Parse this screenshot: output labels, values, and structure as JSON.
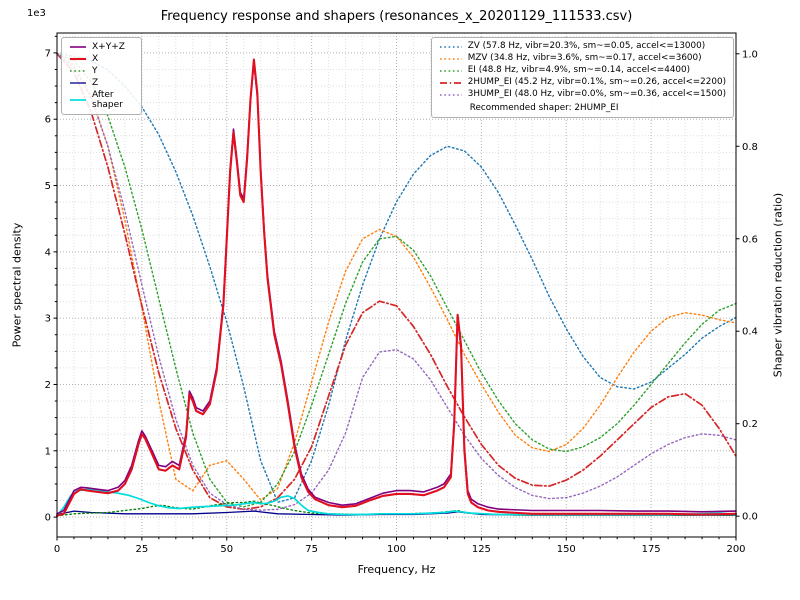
{
  "figure": {
    "title": "Frequency response and shapers (resonances_x_20201129_111533.csv)",
    "xlabel": "Frequency, Hz",
    "ylabel_left": "Power spectral density",
    "ylabel_right": "Shaper vibration reduction (ratio)",
    "offset_text": "1e3"
  },
  "chart_data": {
    "type": "line",
    "title": "Frequency response and shapers (resonances_x_20201129_111533.csv)",
    "x": {
      "label": "Frequency, Hz",
      "range": [
        0,
        200
      ],
      "ticks": [
        0,
        25,
        50,
        75,
        100,
        125,
        150,
        175,
        200
      ]
    },
    "y_left": {
      "label": "Power spectral density",
      "scale_note": "1e3",
      "ticks": [
        0,
        1,
        2,
        3,
        4,
        5,
        6,
        7
      ],
      "units": "PSD values below are in multiples of 1e3"
    },
    "y_right": {
      "label": "Shaper vibration reduction (ratio)",
      "range": [
        0,
        1
      ],
      "tick_labels": [
        "0.0",
        "0.2",
        "0.4",
        "0.6",
        "0.8",
        "1.0"
      ]
    },
    "grid": {
      "major": true,
      "minor": true,
      "legend_left_position": "upper left",
      "legend_right_position": "upper right"
    },
    "legend_note": "Recommended shaper: 2HUMP_EI",
    "psd_series": [
      {
        "name": "x-plus-y-plus-z",
        "label": "X+Y+Z",
        "color": "#800080",
        "style": "solid",
        "width": 1.6,
        "axis": "left",
        "x": [
          0,
          2,
          4,
          5,
          7,
          9,
          12,
          15,
          18,
          20,
          22,
          24,
          25,
          26,
          28,
          30,
          32,
          34,
          36,
          38,
          39,
          40,
          41,
          43,
          45,
          47,
          49,
          50,
          51,
          52,
          53,
          54,
          55,
          56,
          57,
          58,
          59,
          60,
          61,
          62,
          64,
          66,
          68,
          70,
          72,
          74,
          76,
          80,
          84,
          88,
          92,
          96,
          100,
          104,
          108,
          112,
          114,
          116,
          117,
          118,
          119,
          120,
          121,
          122,
          124,
          127,
          130,
          140,
          150,
          160,
          170,
          180,
          190,
          200
        ],
        "y": [
          0.05,
          0.1,
          0.3,
          0.4,
          0.45,
          0.44,
          0.42,
          0.4,
          0.45,
          0.55,
          0.78,
          1.15,
          1.3,
          1.22,
          1.0,
          0.78,
          0.76,
          0.84,
          0.78,
          1.25,
          1.9,
          1.8,
          1.65,
          1.6,
          1.75,
          2.25,
          3.25,
          4.25,
          5.25,
          5.85,
          5.4,
          4.9,
          4.8,
          5.45,
          6.3,
          6.85,
          6.35,
          5.25,
          4.35,
          3.65,
          2.8,
          2.35,
          1.75,
          1.1,
          0.65,
          0.42,
          0.3,
          0.22,
          0.18,
          0.2,
          0.28,
          0.36,
          0.4,
          0.4,
          0.38,
          0.45,
          0.5,
          0.65,
          1.45,
          3.0,
          2.55,
          1.05,
          0.4,
          0.27,
          0.2,
          0.15,
          0.12,
          0.1,
          0.1,
          0.1,
          0.09,
          0.09,
          0.08,
          0.09
        ]
      },
      {
        "name": "x",
        "label": "X",
        "color": "#e01020",
        "style": "solid",
        "width": 2.1,
        "axis": "left",
        "x": [
          0,
          2,
          4,
          5,
          7,
          9,
          12,
          15,
          18,
          20,
          22,
          24,
          25,
          26,
          28,
          30,
          32,
          34,
          36,
          38,
          39,
          40,
          41,
          43,
          45,
          47,
          49,
          50,
          51,
          52,
          53,
          54,
          55,
          56,
          57,
          58,
          59,
          60,
          61,
          62,
          64,
          66,
          68,
          70,
          72,
          74,
          76,
          80,
          84,
          88,
          92,
          96,
          100,
          104,
          108,
          112,
          114,
          116,
          117,
          118,
          119,
          120,
          121,
          122,
          124,
          127,
          130,
          140,
          150,
          160,
          170,
          180,
          190,
          200
        ],
        "y": [
          0.02,
          0.05,
          0.25,
          0.35,
          0.42,
          0.4,
          0.38,
          0.36,
          0.4,
          0.5,
          0.72,
          1.1,
          1.25,
          1.18,
          0.95,
          0.72,
          0.7,
          0.78,
          0.72,
          1.2,
          1.85,
          1.75,
          1.6,
          1.55,
          1.7,
          2.2,
          3.2,
          4.2,
          5.2,
          5.8,
          5.35,
          4.85,
          4.75,
          5.4,
          6.3,
          6.9,
          6.4,
          5.2,
          4.3,
          3.6,
          2.75,
          2.3,
          1.7,
          1.05,
          0.6,
          0.38,
          0.27,
          0.18,
          0.15,
          0.17,
          0.25,
          0.32,
          0.35,
          0.35,
          0.33,
          0.4,
          0.45,
          0.6,
          1.4,
          3.05,
          2.6,
          1.0,
          0.35,
          0.22,
          0.15,
          0.1,
          0.08,
          0.05,
          0.05,
          0.05,
          0.05,
          0.05,
          0.04,
          0.05
        ]
      },
      {
        "name": "y",
        "label": "Y",
        "color": "#007d00",
        "style": "dotted",
        "width": 1.3,
        "axis": "left",
        "x": [
          0,
          5,
          10,
          15,
          20,
          25,
          28,
          31,
          34,
          37,
          40,
          43,
          46,
          49,
          52,
          55,
          58,
          61,
          64,
          67,
          70,
          75,
          80,
          90,
          100,
          110,
          115,
          118,
          121,
          125,
          135,
          150,
          170,
          190,
          200
        ],
        "y": [
          0.02,
          0.05,
          0.06,
          0.07,
          0.1,
          0.13,
          0.16,
          0.18,
          0.15,
          0.13,
          0.12,
          0.15,
          0.18,
          0.2,
          0.22,
          0.22,
          0.24,
          0.2,
          0.17,
          0.13,
          0.1,
          0.06,
          0.05,
          0.04,
          0.05,
          0.06,
          0.08,
          0.1,
          0.06,
          0.05,
          0.03,
          0.03,
          0.03,
          0.03,
          0.03
        ]
      },
      {
        "name": "z",
        "label": "Z",
        "color": "#00008b",
        "style": "solid",
        "width": 1.3,
        "axis": "left",
        "x": [
          0,
          5,
          10,
          20,
          30,
          40,
          50,
          58,
          65,
          75,
          85,
          95,
          105,
          115,
          118,
          125,
          140,
          160,
          180,
          200
        ],
        "y": [
          0.04,
          0.09,
          0.07,
          0.05,
          0.05,
          0.05,
          0.07,
          0.09,
          0.05,
          0.04,
          0.03,
          0.04,
          0.04,
          0.06,
          0.08,
          0.04,
          0.03,
          0.03,
          0.03,
          0.03
        ]
      },
      {
        "name": "after-shaper",
        "label": "After shaper",
        "color": "#00dddd",
        "style": "solid",
        "width": 1.7,
        "axis": "left",
        "x": [
          0,
          2,
          4,
          6,
          9,
          12,
          15,
          18,
          21,
          24,
          27,
          30,
          33,
          36,
          40,
          44,
          48,
          52,
          55,
          58,
          60,
          62,
          64,
          66,
          68,
          70,
          72,
          74,
          77,
          80,
          85,
          90,
          95,
          100,
          105,
          110,
          114,
          117,
          119,
          122,
          126,
          130,
          140,
          150,
          160,
          170,
          180,
          190,
          195,
          200
        ],
        "y": [
          0.02,
          0.15,
          0.32,
          0.4,
          0.42,
          0.4,
          0.38,
          0.36,
          0.33,
          0.28,
          0.22,
          0.17,
          0.14,
          0.13,
          0.15,
          0.16,
          0.17,
          0.18,
          0.2,
          0.22,
          0.2,
          0.21,
          0.24,
          0.3,
          0.32,
          0.28,
          0.18,
          0.1,
          0.07,
          0.05,
          0.04,
          0.04,
          0.05,
          0.05,
          0.05,
          0.06,
          0.07,
          0.09,
          0.08,
          0.06,
          0.05,
          0.04,
          0.04,
          0.04,
          0.04,
          0.04,
          0.04,
          0.05,
          0.06,
          0.04
        ]
      }
    ],
    "shaper_series": [
      {
        "name": "zv",
        "label": "ZV (57.8 Hz, vibr=20.3%, sm~=0.05, accel<=13000)",
        "color": "#1f77b4",
        "style": "dotted",
        "width": 1.4,
        "axis": "right",
        "x": [
          0,
          5,
          10,
          15,
          20,
          25,
          30,
          35,
          40,
          45,
          50,
          55,
          60,
          65,
          70,
          75,
          80,
          85,
          90,
          95,
          100,
          105,
          110,
          115,
          120,
          125,
          130,
          135,
          140,
          145,
          150,
          155,
          160,
          165,
          170,
          175,
          180,
          185,
          190,
          195,
          200
        ],
        "y": [
          1.0,
          0.995,
          0.985,
          0.965,
          0.93,
          0.885,
          0.825,
          0.745,
          0.65,
          0.54,
          0.42,
          0.28,
          0.12,
          0.03,
          0.04,
          0.12,
          0.24,
          0.38,
          0.5,
          0.6,
          0.68,
          0.74,
          0.78,
          0.8,
          0.79,
          0.755,
          0.7,
          0.63,
          0.555,
          0.475,
          0.405,
          0.345,
          0.3,
          0.28,
          0.275,
          0.29,
          0.32,
          0.35,
          0.385,
          0.41,
          0.43
        ]
      },
      {
        "name": "mzv",
        "label": "MZV (34.8 Hz, vibr=3.6%, sm~=0.17, accel<=3600)",
        "color": "#ff7f0e",
        "style": "dotted",
        "width": 1.4,
        "axis": "right",
        "x": [
          0,
          5,
          10,
          15,
          20,
          25,
          30,
          35,
          40,
          45,
          50,
          55,
          60,
          65,
          70,
          75,
          80,
          85,
          90,
          95,
          100,
          105,
          110,
          115,
          120,
          125,
          130,
          135,
          140,
          145,
          150,
          155,
          160,
          165,
          170,
          175,
          180,
          185,
          190,
          195,
          200
        ],
        "y": [
          1.0,
          0.975,
          0.91,
          0.8,
          0.64,
          0.45,
          0.25,
          0.08,
          0.055,
          0.11,
          0.12,
          0.08,
          0.035,
          0.06,
          0.16,
          0.29,
          0.42,
          0.53,
          0.6,
          0.62,
          0.605,
          0.56,
          0.495,
          0.425,
          0.35,
          0.285,
          0.225,
          0.175,
          0.148,
          0.14,
          0.155,
          0.19,
          0.24,
          0.3,
          0.355,
          0.4,
          0.43,
          0.44,
          0.435,
          0.425,
          0.418
        ]
      },
      {
        "name": "ei",
        "label": "EI (48.8 Hz, vibr=4.9%, sm~=0.14, accel<=4400)",
        "color": "#2ca02c",
        "style": "dotted",
        "width": 1.4,
        "axis": "right",
        "x": [
          0,
          5,
          10,
          15,
          20,
          25,
          30,
          35,
          40,
          45,
          50,
          55,
          60,
          65,
          70,
          75,
          80,
          85,
          90,
          95,
          100,
          105,
          110,
          115,
          120,
          125,
          130,
          135,
          140,
          145,
          150,
          155,
          160,
          165,
          170,
          175,
          180,
          185,
          190,
          195,
          200
        ],
        "y": [
          1.0,
          0.985,
          0.94,
          0.865,
          0.755,
          0.62,
          0.47,
          0.32,
          0.18,
          0.08,
          0.03,
          0.02,
          0.03,
          0.07,
          0.14,
          0.24,
          0.35,
          0.46,
          0.55,
          0.6,
          0.605,
          0.575,
          0.52,
          0.45,
          0.38,
          0.31,
          0.25,
          0.2,
          0.165,
          0.145,
          0.14,
          0.15,
          0.17,
          0.2,
          0.24,
          0.285,
          0.33,
          0.375,
          0.415,
          0.445,
          0.46
        ]
      },
      {
        "name": "2hump-ei",
        "label": "2HUMP_EI (45.2 Hz, vibr=0.1%, sm~=0.26, accel<=2200)",
        "color": "#d62728",
        "style": "dashdot",
        "width": 1.7,
        "axis": "right",
        "x": [
          0,
          5,
          10,
          15,
          20,
          25,
          30,
          35,
          40,
          45,
          50,
          55,
          60,
          65,
          70,
          75,
          80,
          85,
          90,
          95,
          100,
          105,
          110,
          115,
          120,
          125,
          130,
          135,
          140,
          145,
          150,
          155,
          160,
          165,
          170,
          175,
          180,
          185,
          190,
          195,
          200
        ],
        "y": [
          1.0,
          0.96,
          0.875,
          0.755,
          0.61,
          0.455,
          0.31,
          0.19,
          0.1,
          0.04,
          0.02,
          0.015,
          0.02,
          0.04,
          0.08,
          0.15,
          0.26,
          0.37,
          0.44,
          0.465,
          0.455,
          0.41,
          0.35,
          0.28,
          0.215,
          0.155,
          0.11,
          0.082,
          0.067,
          0.065,
          0.078,
          0.1,
          0.13,
          0.165,
          0.2,
          0.235,
          0.258,
          0.265,
          0.24,
          0.19,
          0.13
        ]
      },
      {
        "name": "3hump-ei",
        "label": "3HUMP_EI (48.0 Hz, vibr=0.0%, sm~=0.36, accel<=1500)",
        "color": "#9467bd",
        "style": "dotted",
        "width": 1.4,
        "axis": "right",
        "x": [
          0,
          5,
          10,
          15,
          20,
          25,
          30,
          35,
          40,
          45,
          50,
          55,
          60,
          65,
          70,
          75,
          80,
          85,
          90,
          95,
          100,
          105,
          110,
          115,
          120,
          125,
          130,
          135,
          140,
          145,
          150,
          155,
          160,
          165,
          170,
          175,
          180,
          185,
          190,
          195,
          200
        ],
        "y": [
          1.0,
          0.97,
          0.905,
          0.8,
          0.66,
          0.5,
          0.345,
          0.21,
          0.11,
          0.05,
          0.025,
          0.015,
          0.013,
          0.015,
          0.025,
          0.05,
          0.1,
          0.18,
          0.3,
          0.355,
          0.36,
          0.34,
          0.295,
          0.235,
          0.175,
          0.125,
          0.088,
          0.062,
          0.045,
          0.038,
          0.04,
          0.05,
          0.065,
          0.085,
          0.11,
          0.135,
          0.155,
          0.17,
          0.178,
          0.175,
          0.165
        ]
      }
    ]
  }
}
